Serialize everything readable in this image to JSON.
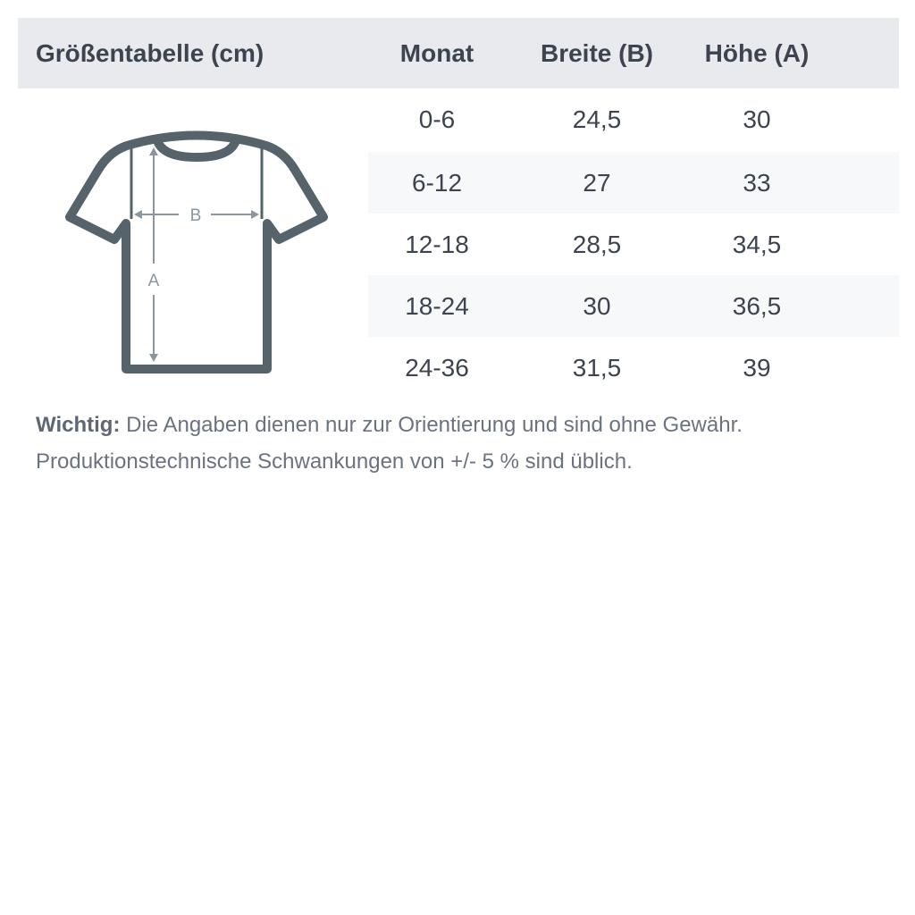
{
  "table": {
    "title": "Größentabelle (cm)",
    "columns": [
      "Monat",
      "Breite (B)",
      "Höhe (A)"
    ],
    "rows": [
      [
        "0-6",
        "24,5",
        "30"
      ],
      [
        "6-12",
        "27",
        "33"
      ],
      [
        "12-18",
        "28,5",
        "34,5"
      ],
      [
        "18-24",
        "30",
        "36,5"
      ],
      [
        "24-36",
        "31,5",
        "39"
      ]
    ]
  },
  "diagram": {
    "label_width": "B",
    "label_height": "A",
    "icon": "tshirt-measurement-icon"
  },
  "note": {
    "label": "Wichtig:",
    "text": " Die Angaben dienen nur zur Orientierung und sind ohne Gewähr.",
    "text2": "Produktionstechnische Schwankungen von +/- 5 % sind üblich."
  },
  "colors": {
    "header_bg": "#e9eaee",
    "stripe_bg": "#f7f8fa",
    "shirt": "#56636b",
    "arrows": "#8a96a0"
  }
}
